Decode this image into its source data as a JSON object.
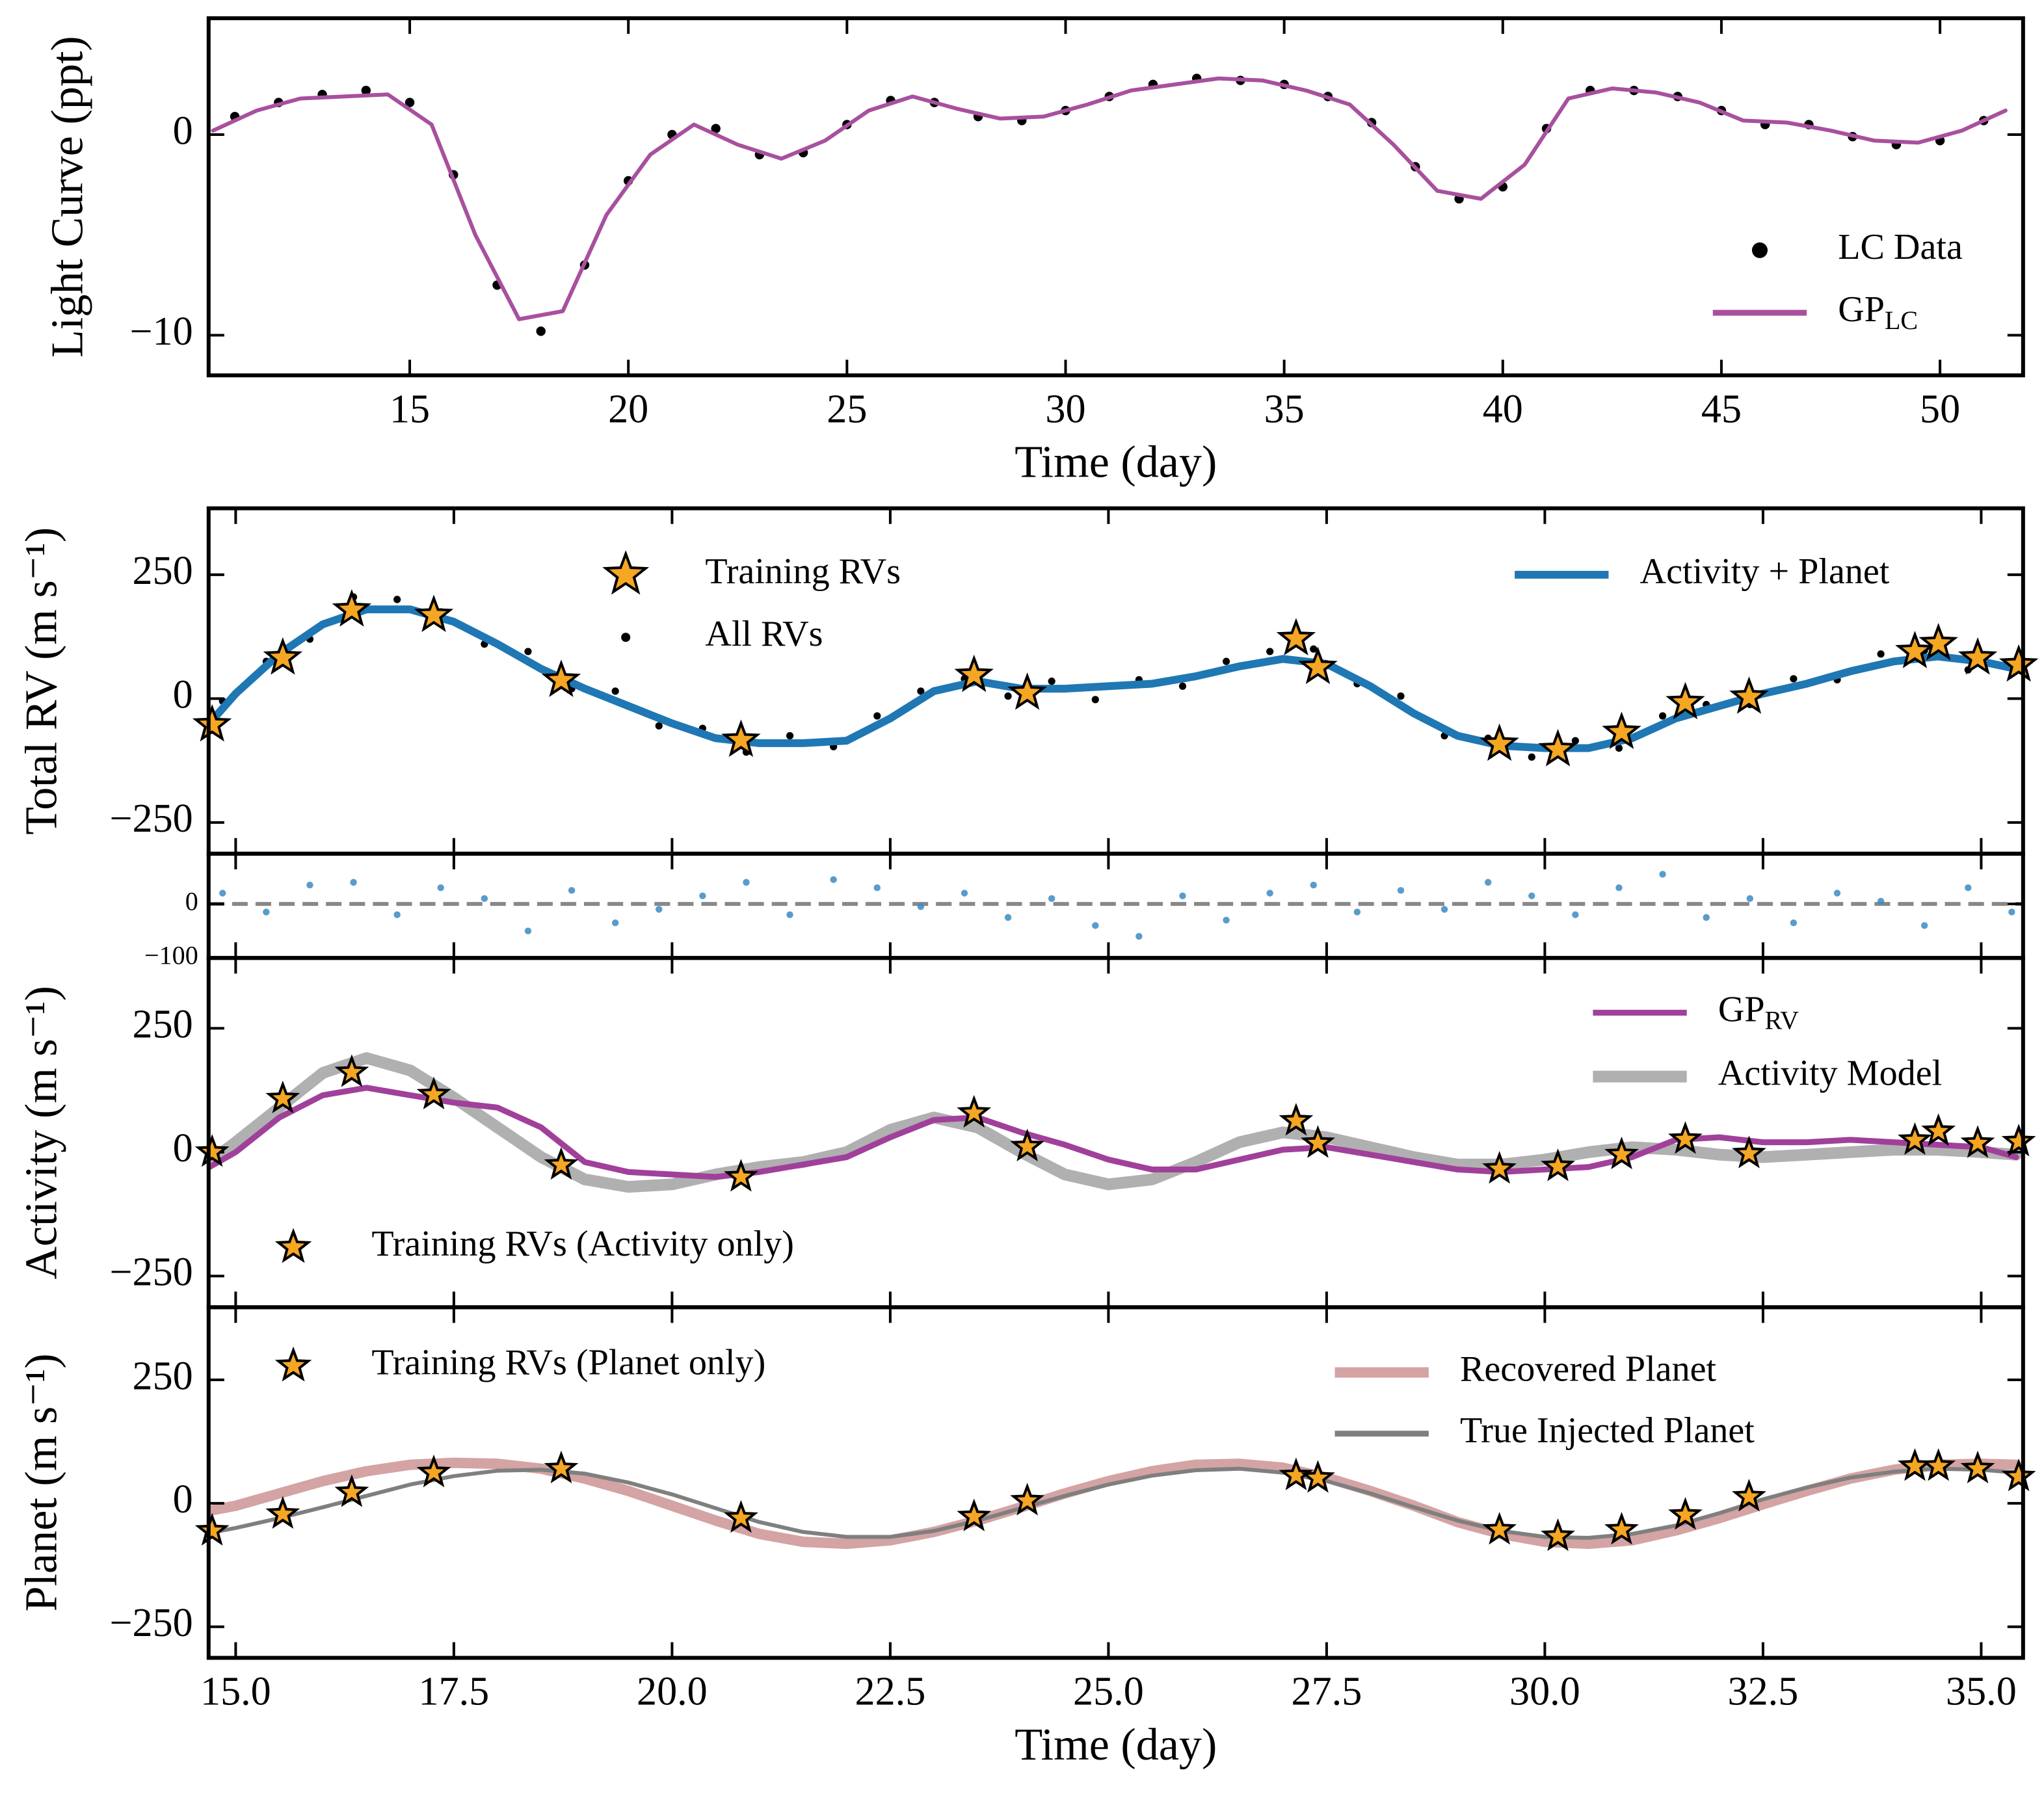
{
  "chart_data": [
    {
      "type": "line",
      "xlabel": "Time (day)",
      "ylabel": "Light Curve (ppt)",
      "xlim": [
        10.4,
        51.9
      ],
      "ylim": [
        -12,
        5.8
      ],
      "xticks": [
        15,
        20,
        25,
        30,
        35,
        40,
        45,
        50
      ],
      "yticks": [
        {
          "value": -10,
          "label": "−10"
        },
        0
      ],
      "series": [
        {
          "name": "LC Data",
          "type": "scatter",
          "color": "#000000",
          "x": [
            11,
            12,
            13,
            14,
            15,
            16,
            17,
            18,
            19,
            20,
            21,
            22,
            23,
            24,
            25,
            26,
            27,
            28,
            29,
            30,
            31,
            32,
            33,
            34,
            35,
            36,
            37,
            38,
            39,
            40,
            41,
            42,
            43,
            44,
            45,
            46,
            47,
            48,
            49,
            50,
            51
          ],
          "values": [
            0.9,
            1.6,
            2.0,
            2.2,
            1.6,
            -2.0,
            -7.5,
            -9.8,
            -6.5,
            -2.3,
            0.0,
            0.3,
            -1.0,
            -0.9,
            0.5,
            1.7,
            1.6,
            0.9,
            0.7,
            1.2,
            1.9,
            2.5,
            2.8,
            2.7,
            2.5,
            1.9,
            0.6,
            -1.6,
            -3.2,
            -2.6,
            0.3,
            2.2,
            2.2,
            1.9,
            1.2,
            0.5,
            0.5,
            -0.1,
            -0.5,
            -0.3,
            0.7
          ]
        },
        {
          "name": "GP",
          "name_sub": "LC",
          "type": "line",
          "color": "#a8509e",
          "x": [
            10.5,
            11.5,
            12.5,
            13.5,
            14.5,
            15.5,
            16.5,
            17.5,
            18.5,
            19.5,
            20.5,
            21.5,
            22.5,
            23.5,
            24.5,
            25.5,
            26.5,
            27.5,
            28.5,
            29.5,
            30.5,
            31.5,
            32.5,
            33.5,
            34.5,
            35.5,
            36.5,
            37.5,
            38.5,
            39.5,
            40.5,
            41.5,
            42.5,
            43.5,
            44.5,
            45.5,
            46.5,
            47.5,
            48.5,
            49.5,
            50.5,
            51.5
          ],
          "values": [
            0.2,
            1.2,
            1.8,
            1.9,
            2.0,
            0.5,
            -5,
            -9.2,
            -8.8,
            -4,
            -1,
            0.5,
            -0.5,
            -1.2,
            -0.3,
            1.2,
            1.9,
            1.3,
            0.8,
            0.9,
            1.5,
            2.2,
            2.5,
            2.8,
            2.7,
            2.2,
            1.5,
            -0.5,
            -2.8,
            -3.2,
            -1.5,
            1.8,
            2.3,
            2.1,
            1.6,
            0.7,
            0.6,
            0.2,
            -0.3,
            -0.4,
            0.2,
            1.2
          ]
        }
      ]
    },
    {
      "type": "line",
      "ylabel": "Total RV (m s⁻¹)",
      "xlim": [
        14.69,
        35.48
      ],
      "ylim": [
        -313,
        384
      ],
      "yticks": [
        {
          "value": -250,
          "label": "−250"
        },
        0,
        250
      ],
      "series": [
        {
          "name": "All RVs",
          "type": "scatter",
          "color": "#000000",
          "x": [
            14.85,
            15.35,
            15.85,
            16.35,
            16.85,
            17.35,
            17.85,
            18.35,
            18.85,
            19.35,
            19.85,
            20.35,
            20.85,
            21.35,
            21.85,
            22.35,
            22.85,
            23.35,
            23.85,
            24.35,
            24.85,
            25.35,
            25.85,
            26.35,
            26.85,
            27.35,
            27.85,
            28.35,
            28.85,
            29.35,
            29.85,
            30.35,
            30.85,
            31.35,
            31.85,
            32.35,
            32.85,
            33.35,
            33.85,
            34.35,
            34.85,
            35.35
          ],
          "values": [
            -5,
            75,
            120,
            205,
            200,
            175,
            110,
            95,
            20,
            15,
            -55,
            -60,
            -108,
            -75,
            -97,
            -35,
            15,
            40,
            5,
            35,
            -2,
            38,
            25,
            75,
            95,
            100,
            30,
            5,
            -75,
            -80,
            -118,
            -85,
            -100,
            -35,
            -12,
            -12,
            40,
            38,
            90,
            97,
            58,
            72
          ]
        },
        {
          "name": "Activity + Planet",
          "type": "line",
          "color": "#1f77b4",
          "x": [
            14.7,
            15.0,
            15.5,
            16.0,
            16.5,
            17.0,
            17.5,
            18.0,
            18.5,
            19.0,
            19.5,
            20.0,
            20.5,
            21.0,
            21.5,
            22.0,
            22.5,
            23.0,
            23.5,
            24.0,
            24.5,
            25.0,
            25.5,
            26.0,
            26.5,
            27.0,
            27.5,
            28.0,
            28.5,
            29.0,
            29.5,
            30.0,
            30.5,
            31.0,
            31.5,
            32.0,
            32.5,
            33.0,
            33.5,
            34.0,
            34.5,
            35.0,
            35.4
          ],
          "values": [
            -50,
            10,
            90,
            150,
            180,
            180,
            155,
            110,
            60,
            20,
            -15,
            -50,
            -80,
            -90,
            -90,
            -85,
            -40,
            15,
            35,
            20,
            20,
            25,
            30,
            45,
            65,
            80,
            70,
            25,
            -30,
            -75,
            -95,
            -100,
            -100,
            -80,
            -40,
            -15,
            10,
            30,
            55,
            75,
            85,
            75,
            60
          ]
        },
        {
          "name": "Training RVs",
          "type": "star",
          "color": "#f5a623",
          "x": [
            14.73,
            15.54,
            16.33,
            17.27,
            18.73,
            20.79,
            23.46,
            24.07,
            27.15,
            27.4,
            29.48,
            30.15,
            30.88,
            31.61,
            32.34,
            34.24,
            34.51,
            34.96,
            35.43
          ],
          "values": [
            -53,
            82,
            179,
            168,
            37,
            -84,
            47,
            11,
            121,
            63,
            -92,
            -103,
            -68,
            -8,
            3,
            95,
            111,
            82,
            68
          ]
        }
      ]
    },
    {
      "type": "line",
      "hline": 0,
      "xlim": [
        14.69,
        35.48
      ],
      "ylim": [
        -100,
        93
      ],
      "yticks": [
        {
          "value": -100,
          "label": "−100"
        },
        0
      ],
      "series": [
        {
          "type": "scatter",
          "color": "#3b8bc2",
          "x": [
            14.85,
            15.35,
            15.85,
            16.35,
            16.85,
            17.35,
            17.85,
            18.35,
            18.85,
            19.35,
            19.85,
            20.35,
            20.85,
            21.35,
            21.85,
            22.35,
            22.85,
            23.35,
            23.85,
            24.35,
            24.85,
            25.35,
            25.85,
            26.35,
            26.85,
            27.35,
            27.85,
            28.35,
            28.85,
            29.35,
            29.85,
            30.35,
            30.85,
            31.35,
            31.85,
            32.35,
            32.85,
            33.35,
            33.85,
            34.35,
            34.85,
            35.35
          ],
          "values": [
            20,
            -15,
            35,
            40,
            -20,
            30,
            10,
            -50,
            25,
            -35,
            -10,
            15,
            40,
            -20,
            45,
            30,
            -5,
            20,
            -25,
            10,
            -40,
            -60,
            15,
            -30,
            20,
            35,
            -15,
            25,
            -10,
            40,
            15,
            -20,
            30,
            55,
            -25,
            10,
            -35,
            20,
            5,
            -40,
            30,
            -15
          ]
        }
      ]
    },
    {
      "type": "line",
      "ylabel": "Activity (m s⁻¹)",
      "xlim": [
        14.69,
        35.48
      ],
      "ylim": [
        -313,
        392
      ],
      "yticks": [
        {
          "value": -250,
          "label": "−250"
        },
        0,
        250
      ],
      "series": [
        {
          "name": "Activity Model",
          "type": "line",
          "color": "#b0b0b0",
          "x": [
            14.7,
            15.0,
            15.5,
            16.0,
            16.5,
            17.0,
            17.5,
            18.0,
            18.5,
            19.0,
            19.5,
            20.0,
            20.5,
            21.0,
            21.5,
            22.0,
            22.5,
            23.0,
            23.5,
            24.0,
            24.5,
            25.0,
            25.5,
            26.0,
            26.5,
            27.0,
            27.5,
            28.0,
            28.5,
            29.0,
            29.5,
            30.0,
            30.5,
            31.0,
            31.5,
            32.0,
            32.5,
            33.0,
            33.5,
            34.0,
            34.5,
            35.0,
            35.4
          ],
          "values": [
            -20,
            20,
            90,
            160,
            190,
            165,
            110,
            50,
            -10,
            -55,
            -70,
            -65,
            -45,
            -30,
            -20,
            0,
            45,
            70,
            50,
            0,
            -45,
            -65,
            -55,
            -20,
            20,
            40,
            30,
            10,
            -10,
            -25,
            -25,
            -15,
            0,
            10,
            5,
            -5,
            -10,
            -5,
            0,
            5,
            5,
            0,
            -5
          ]
        },
        {
          "name": "GP",
          "name_sub": "RV",
          "type": "line",
          "color": "#a0409a",
          "x": [
            14.7,
            15.0,
            15.5,
            16.0,
            16.5,
            17.0,
            17.5,
            18.0,
            18.5,
            19.0,
            19.5,
            20.0,
            20.5,
            21.0,
            21.5,
            22.0,
            22.5,
            23.0,
            23.5,
            24.0,
            24.5,
            25.0,
            25.5,
            26.0,
            26.5,
            27.0,
            27.5,
            28.0,
            28.5,
            29.0,
            29.5,
            30.0,
            30.5,
            31.0,
            31.5,
            32.0,
            32.5,
            33.0,
            33.5,
            34.0,
            34.5,
            35.0,
            35.4
          ],
          "values": [
            -30,
            0,
            70,
            115,
            130,
            115,
            100,
            90,
            50,
            -20,
            -40,
            -45,
            -50,
            -40,
            -25,
            -10,
            30,
            65,
            70,
            40,
            15,
            -15,
            -35,
            -35,
            -15,
            5,
            10,
            -5,
            -20,
            -35,
            -40,
            -35,
            -30,
            -10,
            25,
            30,
            20,
            20,
            25,
            20,
            15,
            10,
            -10
          ]
        },
        {
          "name": "Training RVs (Activity only)",
          "type": "star",
          "color": "#f5a623",
          "x": [
            14.73,
            15.54,
            16.33,
            17.27,
            18.73,
            20.79,
            23.46,
            24.07,
            27.15,
            27.4,
            29.48,
            30.15,
            30.88,
            31.61,
            32.34,
            34.24,
            34.51,
            34.96,
            35.43
          ],
          "values": [
            0,
            108,
            161,
            116,
            -26,
            -50,
            79,
            11,
            63,
            18,
            -34,
            -29,
            -5,
            26,
            -3,
            24,
            42,
            18,
            21
          ]
        }
      ]
    },
    {
      "type": "line",
      "xlabel": "Time (day)",
      "ylabel": "Planet (m s⁻¹)",
      "xlim": [
        14.69,
        35.48
      ],
      "ylim": [
        -313,
        397
      ],
      "xticks": [
        {
          "value": 15,
          "label": "15.0"
        },
        17.5,
        {
          "value": 20,
          "label": "20.0"
        },
        22.5,
        {
          "value": 25,
          "label": "25.0"
        },
        27.5,
        {
          "value": 30,
          "label": "30.0"
        },
        32.5,
        {
          "value": 35,
          "label": "35.0"
        }
      ],
      "yticks": [
        {
          "value": -250,
          "label": "−250"
        },
        0,
        250
      ],
      "series": [
        {
          "name": "Recovered Planet",
          "type": "line",
          "color": "#d4a3a3",
          "x": [
            14.7,
            15.0,
            15.5,
            16.0,
            16.5,
            17.0,
            17.5,
            18.0,
            18.5,
            19.0,
            19.5,
            20.0,
            20.5,
            21.0,
            21.5,
            22.0,
            22.5,
            23.0,
            23.5,
            24.0,
            24.5,
            25.0,
            25.5,
            26.0,
            26.5,
            27.0,
            27.5,
            28.0,
            28.5,
            29.0,
            29.5,
            30.0,
            30.5,
            31.0,
            31.5,
            32.0,
            32.5,
            33.0,
            33.5,
            34.0,
            34.5,
            35.0,
            35.4
          ],
          "values": [
            -15,
            -5,
            20,
            45,
            65,
            78,
            82,
            80,
            70,
            50,
            25,
            -5,
            -35,
            -62,
            -78,
            -82,
            -75,
            -58,
            -35,
            -8,
            20,
            45,
            65,
            78,
            80,
            72,
            52,
            25,
            -5,
            -38,
            -62,
            -78,
            -82,
            -75,
            -55,
            -30,
            -2,
            25,
            50,
            68,
            78,
            80,
            78
          ]
        },
        {
          "name": "True Injected Planet",
          "type": "line",
          "color": "#7f7f7f",
          "x": [
            14.7,
            15.0,
            15.5,
            16.0,
            16.5,
            17.0,
            17.5,
            18.0,
            18.5,
            19.0,
            19.5,
            20.0,
            20.5,
            21.0,
            21.5,
            22.0,
            22.5,
            23.0,
            23.5,
            24.0,
            24.5,
            25.0,
            25.5,
            26.0,
            26.5,
            27.0,
            27.5,
            28.0,
            28.5,
            29.0,
            29.5,
            30.0,
            30.5,
            31.0,
            31.5,
            32.0,
            32.5,
            33.0,
            33.5,
            34.0,
            34.5,
            35.0,
            35.4
          ],
          "values": [
            -60,
            -50,
            -30,
            -8,
            15,
            38,
            55,
            66,
            68,
            60,
            42,
            18,
            -10,
            -38,
            -58,
            -68,
            -68,
            -56,
            -35,
            -10,
            15,
            38,
            56,
            67,
            70,
            62,
            45,
            20,
            -8,
            -35,
            -56,
            -68,
            -70,
            -62,
            -45,
            -20,
            8,
            32,
            52,
            64,
            70,
            68,
            62
          ]
        },
        {
          "name": "Training RVs (Planet only)",
          "type": "star",
          "color": "#f5a623",
          "x": [
            14.73,
            15.54,
            16.33,
            17.27,
            18.73,
            20.79,
            23.46,
            24.07,
            27.15,
            27.4,
            29.48,
            30.15,
            30.88,
            31.61,
            32.34,
            34.24,
            34.51,
            34.96,
            35.43
          ],
          "values": [
            -56,
            -22,
            22,
            62,
            70,
            -30,
            -27,
            5,
            56,
            51,
            -54,
            -67,
            -54,
            -24,
            13,
            75,
            75,
            70,
            54
          ]
        }
      ]
    }
  ]
}
